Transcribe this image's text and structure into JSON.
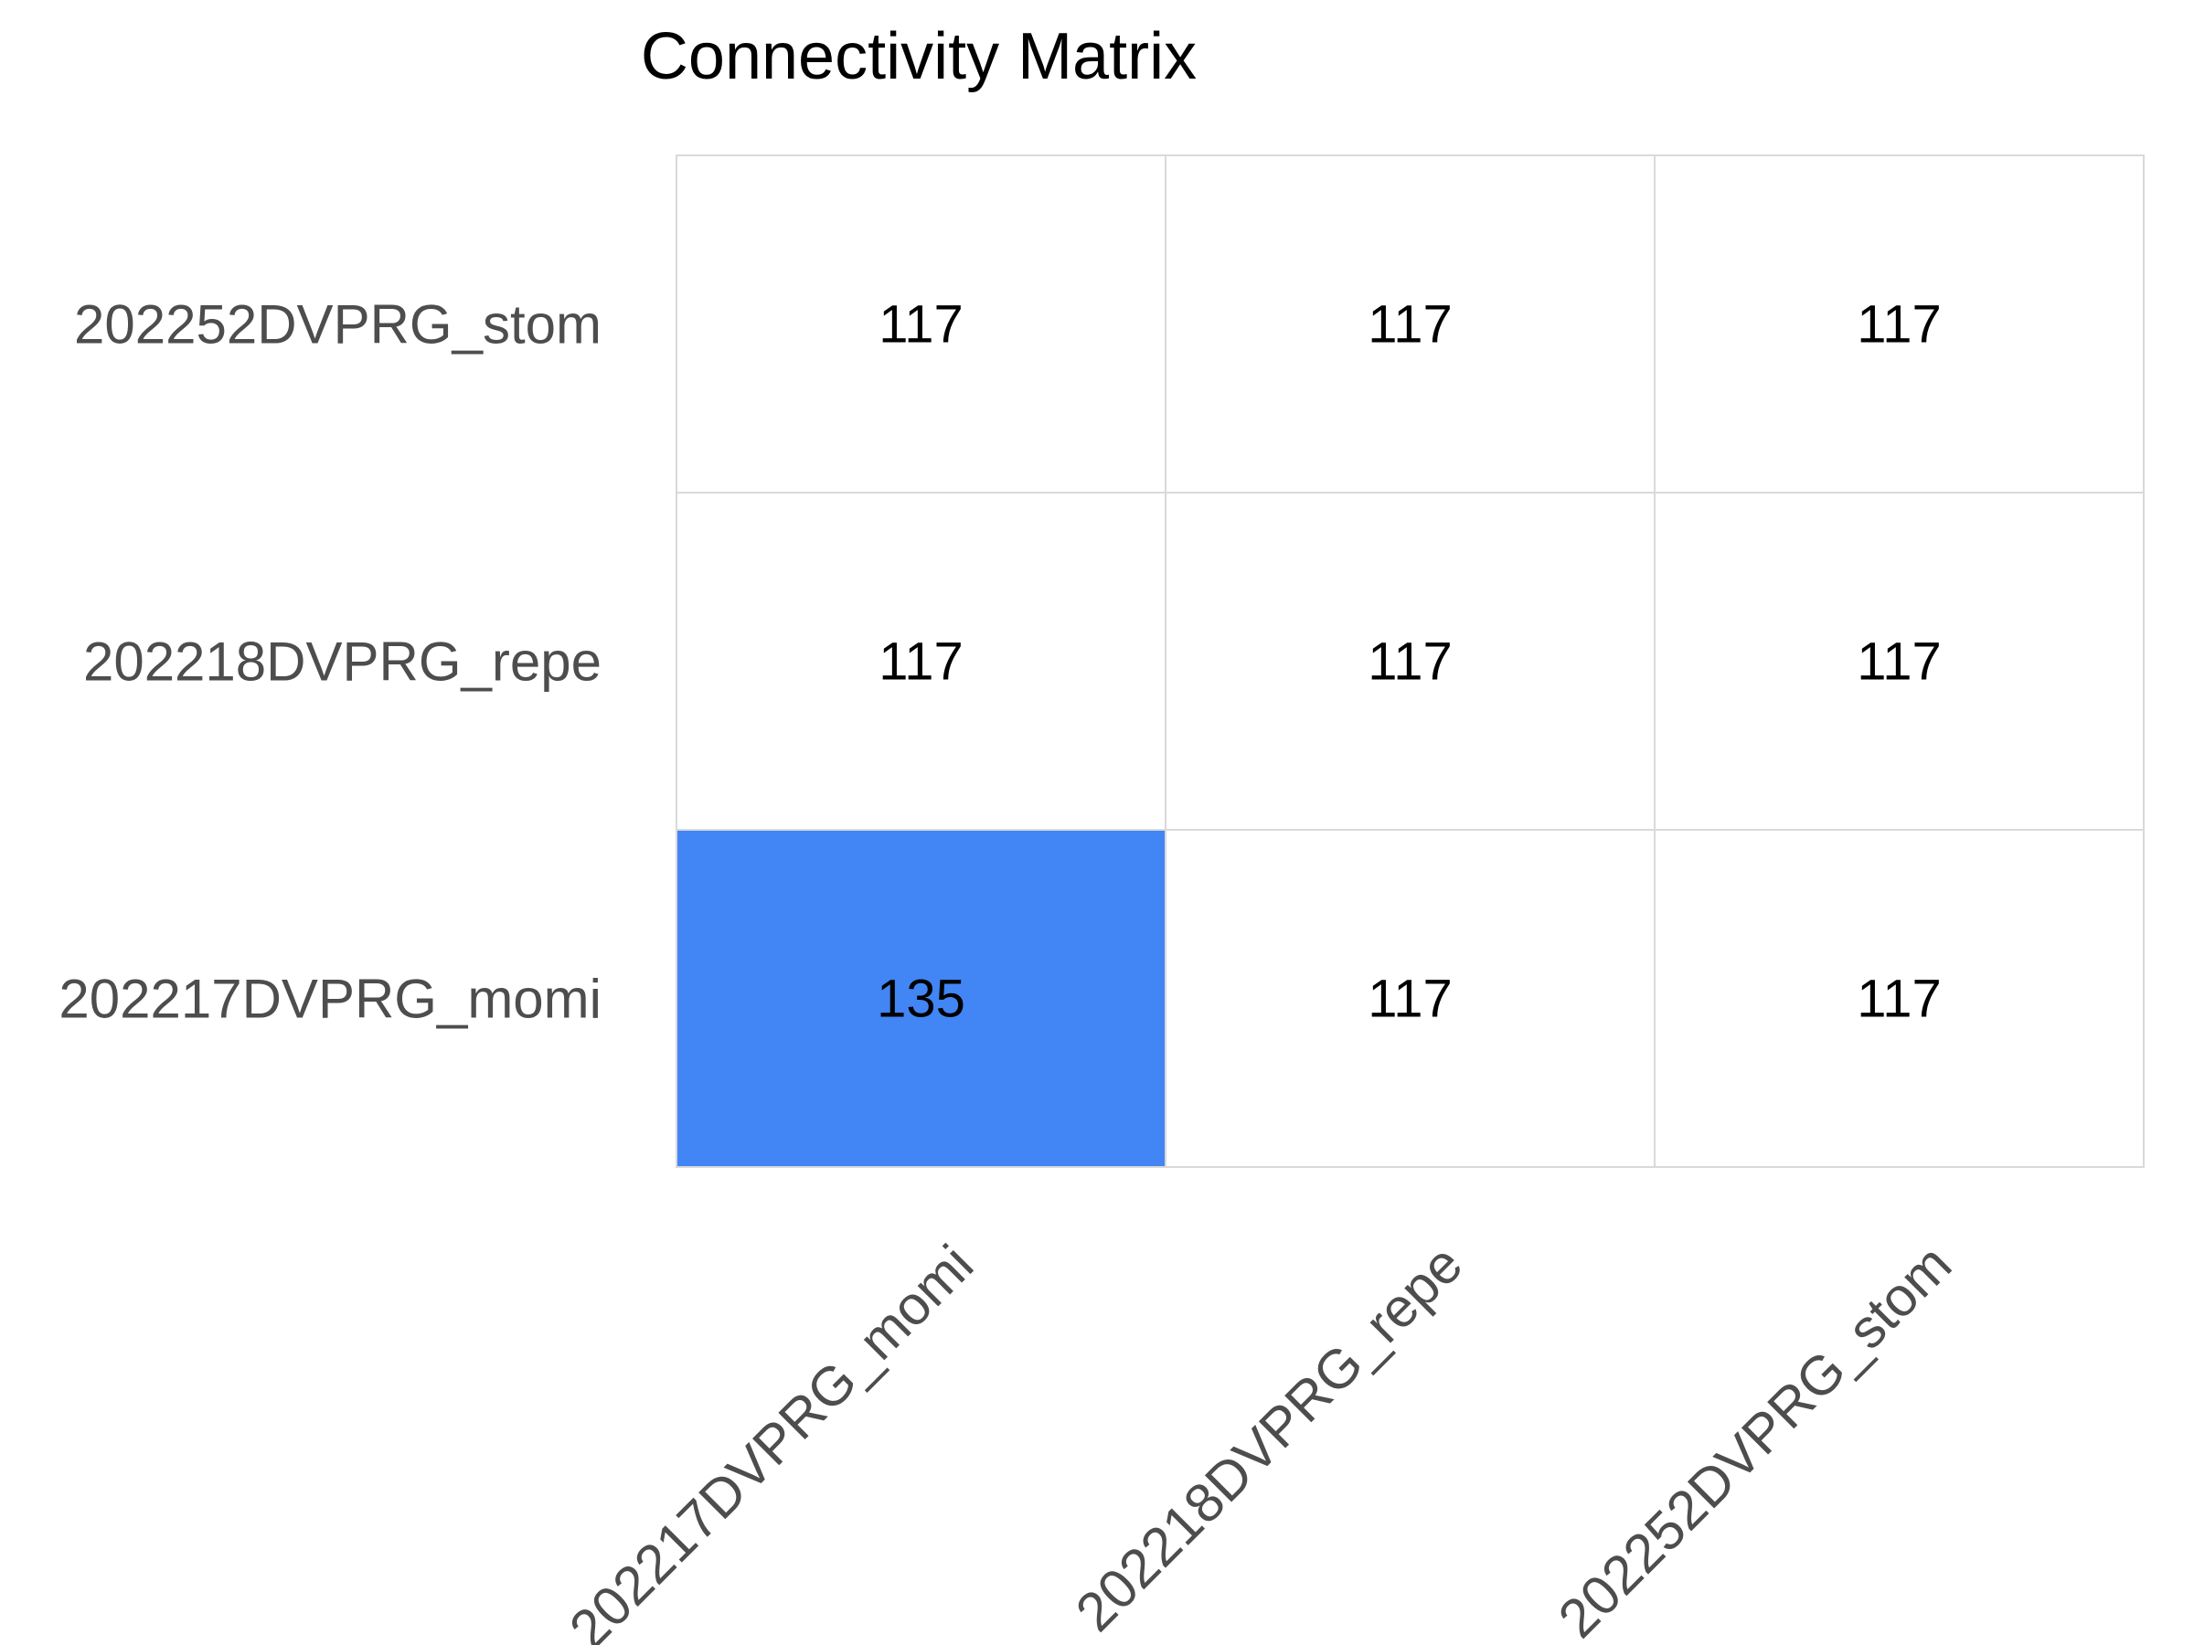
{
  "chart_data": {
    "type": "heatmap",
    "title": "Connectivity Matrix",
    "xlabel": "",
    "ylabel": "",
    "x_categories": [
      "202217DVPRG_momi",
      "202218DVPRG_repe",
      "202252DVPRG_stom"
    ],
    "y_categories": [
      "202217DVPRG_momi",
      "202218DVPRG_repe",
      "202252DVPRG_stom"
    ],
    "values": [
      [
        135,
        117,
        117
      ],
      [
        117,
        117,
        117
      ],
      [
        117,
        117,
        117
      ]
    ],
    "colors": {
      "low": "#ffffff",
      "high": "#4285f4",
      "grid": "#d9d9d9",
      "tick_text": "#4d4d4d",
      "value_text": "#000000"
    },
    "grid": true,
    "legend": "none"
  }
}
